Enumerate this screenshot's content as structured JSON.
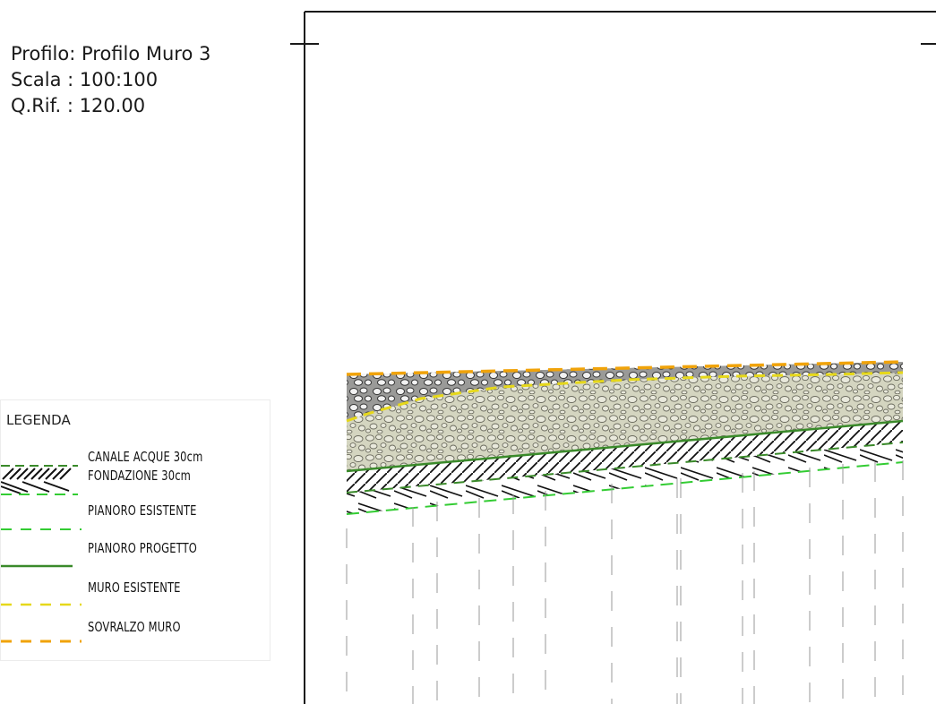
{
  "header": {
    "profile": "Profilo: Profilo Muro 3",
    "scale": "Scala : 100:100",
    "reference": "Q.Rif. : 120.00"
  },
  "legend": {
    "title": "LEGENDA",
    "items": [
      {
        "key": "canale",
        "label": "CANALE ACQUE 30cm"
      },
      {
        "key": "fondazione",
        "label": "FONDAZIONE 30cm"
      },
      {
        "key": "pianoro_esistente",
        "label": "PIANORO ESISTENTE"
      },
      {
        "key": "pianoro_progetto",
        "label": "PIANORO PROGETTO"
      },
      {
        "key": "muro_esistente",
        "label": "MURO ESISTENTE"
      },
      {
        "key": "sovralzo_muro",
        "label": "SOVRALZO MURO"
      }
    ]
  },
  "colors": {
    "pianoro_esistente": "#33cc33",
    "pianoro_progetto": "#3a8a2a",
    "muro_esistente": "#e6d81a",
    "sovralzo_muro": "#f0a30a",
    "gravel_fill": "#d6d6c2",
    "frame": "#1a1a1a"
  }
}
